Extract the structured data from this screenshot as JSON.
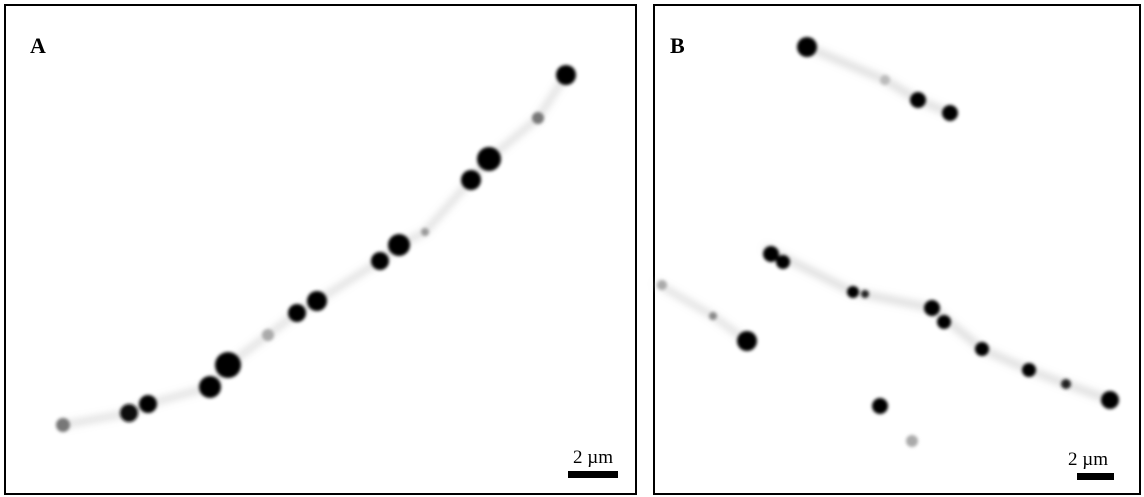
{
  "panels": [
    {
      "label": "A",
      "scale_bar": "2 µm"
    },
    {
      "label": "B",
      "scale_bar": "2 µm"
    }
  ]
}
